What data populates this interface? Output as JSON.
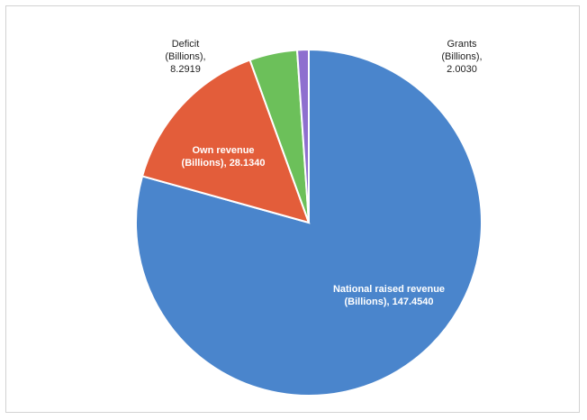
{
  "chart_data": {
    "type": "pie",
    "title": "",
    "slices": [
      {
        "name": "National raised revenue",
        "value": 147.454,
        "label_lines": [
          "National raised revenue",
          "(Billions), 147.4540"
        ],
        "color": "#4a85cc",
        "label_inside": true
      },
      {
        "name": "Own revenue",
        "value": 28.134,
        "label_lines": [
          "Own revenue",
          "(Billions), 28.1340"
        ],
        "color": "#e35d3a",
        "label_inside": true
      },
      {
        "name": "Deficit",
        "value": 8.2919,
        "label_lines": [
          "Deficit",
          "(Billions),",
          "8.2919"
        ],
        "color": "#6cc05a",
        "label_inside": false
      },
      {
        "name": "Grants",
        "value": 2.003,
        "label_lines": [
          "Grants",
          "(Billions),",
          "2.0030"
        ],
        "color": "#8e6fcf",
        "label_inside": false
      }
    ],
    "start_direction": "12 o'clock",
    "direction": "clockwise",
    "legend": "none"
  }
}
